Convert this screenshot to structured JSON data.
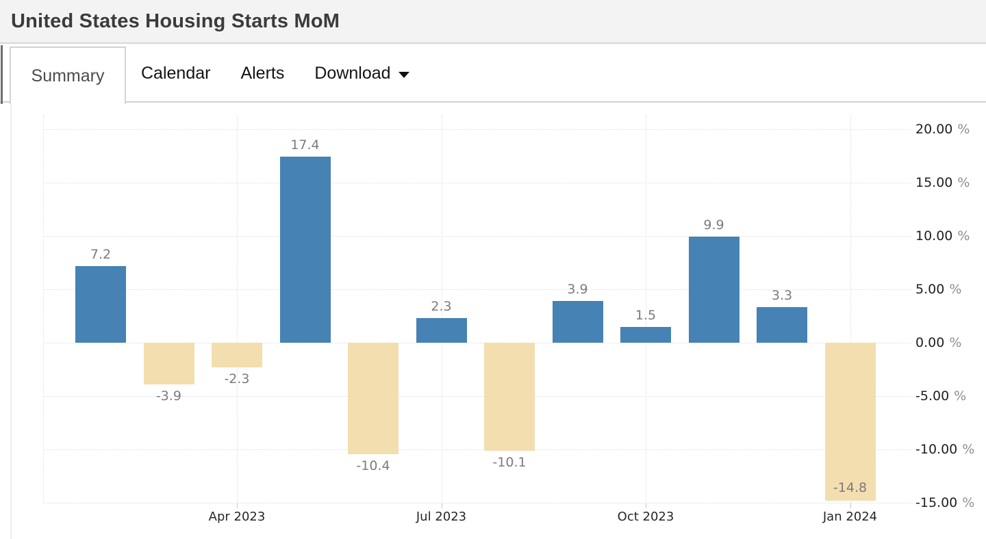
{
  "header": {
    "title": "United States Housing Starts MoM"
  },
  "tabs": [
    {
      "label": "Summary",
      "active": true
    },
    {
      "label": "Calendar",
      "active": false
    },
    {
      "label": "Alerts",
      "active": false
    },
    {
      "label": "Download",
      "active": false,
      "has_caret": true
    }
  ],
  "chart_data": {
    "type": "bar",
    "title": "United States Housing Starts MoM",
    "values": [
      7.2,
      -3.9,
      -2.3,
      17.4,
      -10.4,
      2.3,
      -10.1,
      3.9,
      1.5,
      9.9,
      3.3,
      -14.8
    ],
    "data_labels": [
      "7.2",
      "-3.9",
      "-2.3",
      "17.4",
      "-10.4",
      "2.3",
      "-10.1",
      "3.9",
      "1.5",
      "9.9",
      "3.3",
      "-14.8"
    ],
    "x_ticks": [
      {
        "index": 2,
        "label": "Apr 2023"
      },
      {
        "index": 5,
        "label": "Jul 2023"
      },
      {
        "index": 8,
        "label": "Oct 2023"
      },
      {
        "index": 11,
        "label": "Jan 2024"
      }
    ],
    "y_ticks": [
      {
        "value": 20,
        "label": "20.00 %"
      },
      {
        "value": 15,
        "label": "15.00 %"
      },
      {
        "value": 10,
        "label": "10.00 %"
      },
      {
        "value": 5,
        "label": "5.00 %"
      },
      {
        "value": 0,
        "label": "0.00 %"
      },
      {
        "value": -5,
        "label": "-5.00 %"
      },
      {
        "value": -10,
        "label": "-10.00 %"
      },
      {
        "value": -15,
        "label": "-15.00 %"
      }
    ],
    "ylim": [
      -15,
      20
    ],
    "yaxis_side": "right",
    "grid": "dotted",
    "legend": "none",
    "colors": {
      "positive": "#4682b4",
      "negative": "#f3deb0"
    }
  }
}
